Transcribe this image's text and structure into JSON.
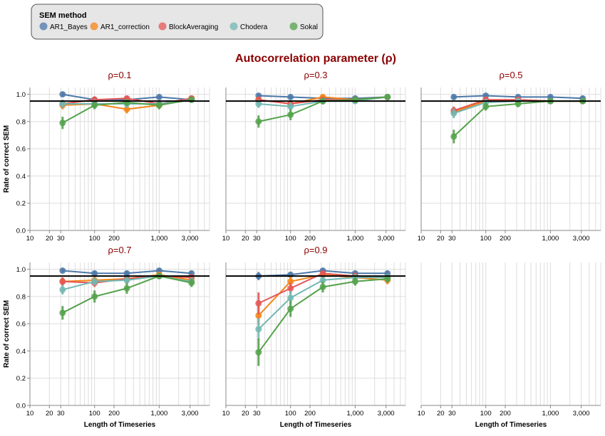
{
  "legend": {
    "title": "SEM method",
    "items": [
      {
        "label": "AR1_Bayes",
        "color": "#4c78a8"
      },
      {
        "label": "AR1_correction",
        "color": "#f58518"
      },
      {
        "label": "BlockAveraging",
        "color": "#e45756"
      },
      {
        "label": "Chodera",
        "color": "#72b7b2"
      },
      {
        "label": "Sokal",
        "color": "#54a24b"
      }
    ]
  },
  "suptitle": "Autocorrelation parameter (ρ)",
  "ylabel": "Rate of correct SEM",
  "xlabel": "Length of Timeseries",
  "colors": {
    "title": "#8b0000",
    "reference_line": "#000000",
    "grid": "#dddddd",
    "axis": "#888888"
  },
  "chart_data": [
    {
      "type": "line",
      "title": "ρ=0.1",
      "x": [
        32,
        100,
        316,
        1000,
        3162
      ],
      "xlim": [
        10,
        6000
      ],
      "xscale": "log",
      "xticks": [
        "10",
        "20",
        "30",
        "100",
        "200",
        "1,000",
        "3,000"
      ],
      "ylim": [
        0,
        1.05
      ],
      "yticks": [
        "0.0",
        "0.2",
        "0.4",
        "0.6",
        "0.8",
        "1.0"
      ],
      "reference_y": 0.95,
      "series": [
        {
          "name": "AR1_Bayes",
          "values": [
            1.0,
            0.96,
            0.96,
            0.98,
            0.96
          ],
          "err": [
            0.015,
            0.02,
            0.02,
            0.015,
            0.02
          ]
        },
        {
          "name": "AR1_correction",
          "values": [
            0.92,
            0.93,
            0.89,
            0.92,
            0.97
          ],
          "err": [
            0.03,
            0.03,
            0.03,
            0.03,
            0.02
          ]
        },
        {
          "name": "BlockAveraging",
          "values": [
            0.93,
            0.96,
            0.97,
            0.93,
            0.97
          ],
          "err": [
            0.03,
            0.025,
            0.02,
            0.03,
            0.02
          ]
        },
        {
          "name": "Chodera",
          "values": [
            0.93,
            0.93,
            0.93,
            0.93,
            0.96
          ],
          "err": [
            0.03,
            0.03,
            0.03,
            0.03,
            0.02
          ]
        },
        {
          "name": "Sokal",
          "values": [
            0.79,
            0.92,
            0.94,
            0.92,
            0.96
          ],
          "err": [
            0.045,
            0.03,
            0.025,
            0.03,
            0.02
          ]
        }
      ]
    },
    {
      "type": "line",
      "title": "ρ=0.3",
      "x": [
        32,
        100,
        316,
        1000,
        3162
      ],
      "xlim": [
        10,
        6000
      ],
      "xscale": "log",
      "xticks": [
        "10",
        "20",
        "30",
        "100",
        "200",
        "1,000",
        "3,000"
      ],
      "ylim": [
        0,
        1.05
      ],
      "reference_y": 0.95,
      "series": [
        {
          "name": "AR1_Bayes",
          "values": [
            0.99,
            0.98,
            0.97,
            0.97,
            0.98
          ],
          "err": [
            0.015,
            0.015,
            0.02,
            0.02,
            0.015
          ]
        },
        {
          "name": "AR1_correction",
          "values": [
            0.96,
            0.93,
            0.98,
            0.96,
            0.98
          ],
          "err": [
            0.02,
            0.025,
            0.015,
            0.02,
            0.015
          ]
        },
        {
          "name": "BlockAveraging",
          "values": [
            0.96,
            0.93,
            0.96,
            0.96,
            0.98
          ],
          "err": [
            0.02,
            0.025,
            0.02,
            0.02,
            0.015
          ]
        },
        {
          "name": "Chodera",
          "values": [
            0.93,
            0.91,
            0.95,
            0.95,
            0.98
          ],
          "err": [
            0.03,
            0.03,
            0.02,
            0.02,
            0.015
          ]
        },
        {
          "name": "Sokal",
          "values": [
            0.8,
            0.85,
            0.95,
            0.96,
            0.98
          ],
          "err": [
            0.045,
            0.04,
            0.025,
            0.02,
            0.015
          ]
        }
      ]
    },
    {
      "type": "line",
      "title": "ρ=0.5",
      "x": [
        32,
        100,
        316,
        1000,
        3162
      ],
      "xlim": [
        10,
        6000
      ],
      "xscale": "log",
      "xticks": [
        "10",
        "20",
        "30",
        "100",
        "200",
        "1,000",
        "3,000"
      ],
      "ylim": [
        0,
        1.05
      ],
      "reference_y": 0.95,
      "series": [
        {
          "name": "AR1_Bayes",
          "values": [
            0.98,
            0.99,
            0.98,
            0.98,
            0.97
          ],
          "err": [
            0.015,
            0.015,
            0.015,
            0.015,
            0.02
          ]
        },
        {
          "name": "AR1_correction",
          "values": [
            0.87,
            0.95,
            0.96,
            0.95,
            0.95
          ],
          "err": [
            0.03,
            0.025,
            0.02,
            0.02,
            0.02
          ]
        },
        {
          "name": "BlockAveraging",
          "values": [
            0.88,
            0.96,
            0.96,
            0.95,
            0.95
          ],
          "err": [
            0.03,
            0.025,
            0.02,
            0.02,
            0.02
          ]
        },
        {
          "name": "Chodera",
          "values": [
            0.86,
            0.94,
            0.95,
            0.95,
            0.95
          ],
          "err": [
            0.035,
            0.025,
            0.02,
            0.02,
            0.02
          ]
        },
        {
          "name": "Sokal",
          "values": [
            0.69,
            0.91,
            0.93,
            0.95,
            0.95
          ],
          "err": [
            0.05,
            0.03,
            0.025,
            0.02,
            0.02
          ]
        }
      ]
    },
    {
      "type": "line",
      "title": "ρ=0.7",
      "x": [
        32,
        100,
        316,
        1000,
        3162
      ],
      "xlim": [
        10,
        6000
      ],
      "xscale": "log",
      "xticks": [
        "10",
        "20",
        "30",
        "100",
        "200",
        "1,000",
        "3,000"
      ],
      "ylim": [
        0,
        1.05
      ],
      "yticks": [
        "0.0",
        "0.2",
        "0.4",
        "0.6",
        "0.8",
        "1.0"
      ],
      "reference_y": 0.95,
      "series": [
        {
          "name": "AR1_Bayes",
          "values": [
            0.99,
            0.97,
            0.97,
            0.99,
            0.97
          ],
          "err": [
            0.015,
            0.02,
            0.02,
            0.015,
            0.02
          ]
        },
        {
          "name": "AR1_correction",
          "values": [
            0.91,
            0.92,
            0.93,
            0.96,
            0.92
          ],
          "err": [
            0.03,
            0.03,
            0.025,
            0.02,
            0.03
          ]
        },
        {
          "name": "BlockAveraging",
          "values": [
            0.91,
            0.9,
            0.93,
            0.95,
            0.94
          ],
          "err": [
            0.03,
            0.03,
            0.025,
            0.02,
            0.025
          ]
        },
        {
          "name": "Chodera",
          "values": [
            0.85,
            0.91,
            0.92,
            0.95,
            0.91
          ],
          "err": [
            0.035,
            0.03,
            0.025,
            0.02,
            0.03
          ]
        },
        {
          "name": "Sokal",
          "values": [
            0.68,
            0.8,
            0.86,
            0.95,
            0.9
          ],
          "err": [
            0.05,
            0.045,
            0.04,
            0.02,
            0.03
          ]
        }
      ]
    },
    {
      "type": "line",
      "title": "ρ=0.9",
      "x": [
        32,
        100,
        316,
        1000,
        3162
      ],
      "xlim": [
        10,
        6000
      ],
      "xscale": "log",
      "xticks": [
        "10",
        "20",
        "30",
        "100",
        "200",
        "1,000",
        "3,000"
      ],
      "ylim": [
        0,
        1.05
      ],
      "reference_y": 0.95,
      "series": [
        {
          "name": "AR1_Bayes",
          "values": [
            0.95,
            0.96,
            0.99,
            0.97,
            0.97
          ],
          "err": [
            0.03,
            0.02,
            0.015,
            0.02,
            0.02
          ]
        },
        {
          "name": "AR1_correction",
          "values": [
            0.66,
            0.91,
            0.96,
            0.94,
            0.92
          ],
          "err": [
            0.07,
            0.04,
            0.02,
            0.025,
            0.03
          ]
        },
        {
          "name": "BlockAveraging",
          "values": [
            0.75,
            0.86,
            0.97,
            0.95,
            0.94
          ],
          "err": [
            0.08,
            0.04,
            0.02,
            0.025,
            0.025
          ]
        },
        {
          "name": "Chodera",
          "values": [
            0.56,
            0.79,
            0.92,
            0.94,
            0.94
          ],
          "err": [
            0.08,
            0.05,
            0.03,
            0.025,
            0.025
          ]
        },
        {
          "name": "Sokal",
          "values": [
            0.39,
            0.71,
            0.87,
            0.91,
            0.93
          ],
          "err": [
            0.1,
            0.06,
            0.04,
            0.03,
            0.03
          ]
        }
      ]
    },
    {
      "type": "line",
      "title": "",
      "x": [],
      "xlim": [
        10,
        6000
      ],
      "xscale": "log",
      "xticks": [
        "10",
        "20",
        "30",
        "100",
        "200",
        "1,000",
        "3,000"
      ],
      "series": []
    }
  ]
}
